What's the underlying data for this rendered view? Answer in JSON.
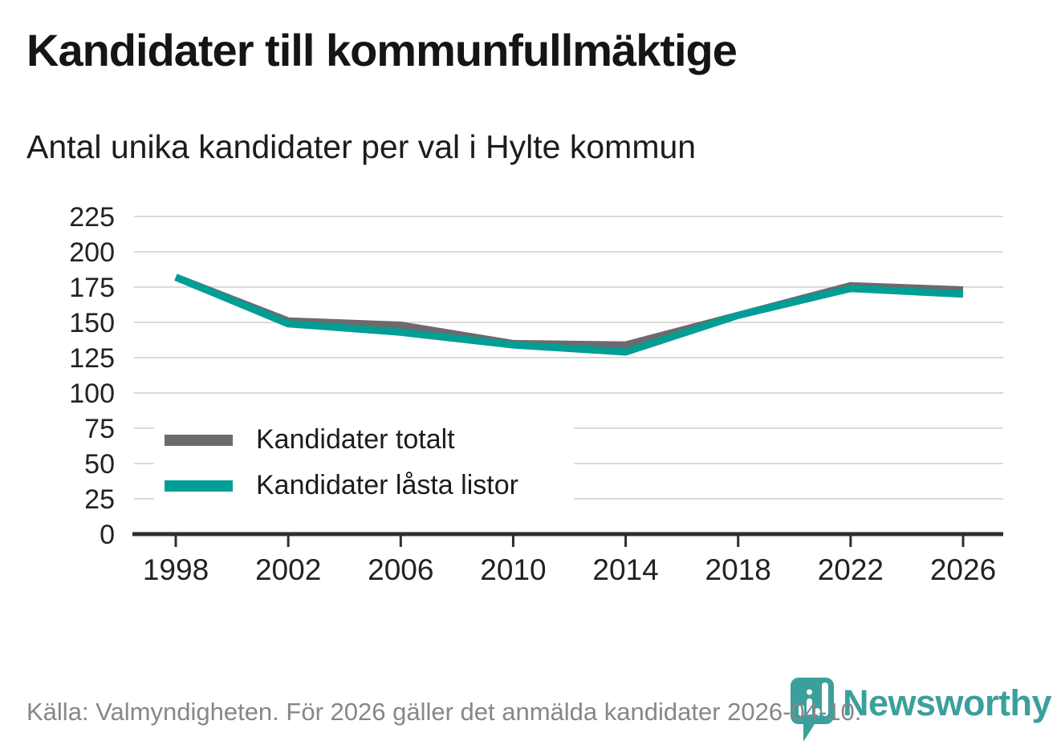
{
  "title": "Kandidater till kommunfullmäktige",
  "subtitle": "Antal unika kandidater per val i Hylte kommun",
  "source_note": "Källa: Valmyndigheten. För 2026 gäller det anmälda kandidater 2026-04-10.",
  "logo": {
    "wordmark": "Newsworthy",
    "icon": "newsworthy-pin-barchart-icon"
  },
  "colors": {
    "series_total": "#6d6a6e",
    "series_locked": "#009e95",
    "gridline": "#dadada",
    "axis": "#2e2e2e",
    "tick_label": "#222222",
    "logo_teal": "#3ba09b",
    "source_text": "#85878a"
  },
  "chart_data": {
    "type": "line",
    "title": "Kandidater till kommunfullmäktige",
    "subtitle": "Antal unika kandidater per val i Hylte kommun",
    "x": [
      1998,
      2002,
      2006,
      2010,
      2014,
      2018,
      2022,
      2026
    ],
    "series": [
      {
        "name": "Kandidater totalt",
        "color": "#6d6a6e",
        "values": [
          182,
          151,
          148,
          135,
          134,
          155,
          176,
          173
        ]
      },
      {
        "name": "Kandidater låsta listor",
        "color": "#009e95",
        "values": [
          182,
          149,
          143,
          134,
          129,
          155,
          174,
          170
        ]
      }
    ],
    "xlabel": "",
    "ylabel": "",
    "ylim": [
      0,
      225
    ],
    "yticks": [
      0,
      25,
      50,
      75,
      100,
      125,
      150,
      175,
      200,
      225
    ],
    "grid": "horizontal",
    "legend_position": "inside-left"
  }
}
